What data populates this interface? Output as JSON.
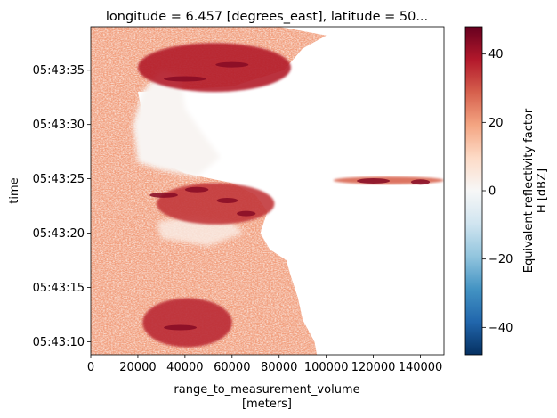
{
  "chart_data": {
    "type": "heatmap",
    "title": "longitude = 6.457 [degrees_east], latitude = 50...",
    "xlabel": "range_to_measurement_volume",
    "xlabel_unit": "[meters]",
    "ylabel": "time",
    "x_ticks": [
      "0",
      "20000",
      "40000",
      "60000",
      "80000",
      "100000",
      "120000",
      "140000"
    ],
    "x_tick_values": [
      0,
      20000,
      40000,
      60000,
      80000,
      100000,
      120000,
      140000
    ],
    "xlim": [
      0,
      150000
    ],
    "y_ticks": [
      "05:43:10",
      "05:43:15",
      "05:43:20",
      "05:43:25",
      "05:43:30",
      "05:43:35"
    ],
    "y_tick_values_sec": [
      10,
      15,
      20,
      25,
      30,
      35
    ],
    "ylim_sec": [
      8.8,
      39.0
    ],
    "colorbar": {
      "label_line1": "Equivalent reflectivity factor",
      "label_line2": "H [dBZ]",
      "ticks": [
        "40",
        "20",
        "0",
        "−20",
        "−40"
      ],
      "tick_values": [
        40,
        20,
        0,
        -20,
        -40
      ],
      "range": [
        -48,
        48
      ],
      "colormap": "RdBu_r",
      "colors": [
        "#053061",
        "#2166ac",
        "#4393c3",
        "#92c5de",
        "#d1e5f0",
        "#f7f7f7",
        "#fddbc7",
        "#f4a582",
        "#d6604d",
        "#b2182b",
        "#67001f"
      ]
    },
    "structures": [
      {
        "name": "main echo body",
        "x_range_m": [
          0,
          95000
        ],
        "time_range_sec": [
          8.8,
          39.0
        ],
        "typical_dBZ": 22
      },
      {
        "name": "upper arc band",
        "x_range_m": [
          20000,
          85000
        ],
        "time_range_sec": [
          33.0,
          37.5
        ],
        "typical_dBZ": 38
      },
      {
        "name": "banded streaks",
        "x_range_m": [
          28000,
          78000
        ],
        "time_range_sec": [
          20.8,
          24.6
        ],
        "typical_dBZ": 34
      },
      {
        "name": "distant echo line",
        "x_range_m": [
          103000,
          150000
        ],
        "time_range_sec": [
          24.5,
          25.2
        ],
        "typical_dBZ": 28
      },
      {
        "name": "core near 40 km",
        "x_range_m": [
          22000,
          60000
        ],
        "time_range_sec": [
          9.5,
          14.0
        ],
        "typical_dBZ": 36
      }
    ]
  }
}
